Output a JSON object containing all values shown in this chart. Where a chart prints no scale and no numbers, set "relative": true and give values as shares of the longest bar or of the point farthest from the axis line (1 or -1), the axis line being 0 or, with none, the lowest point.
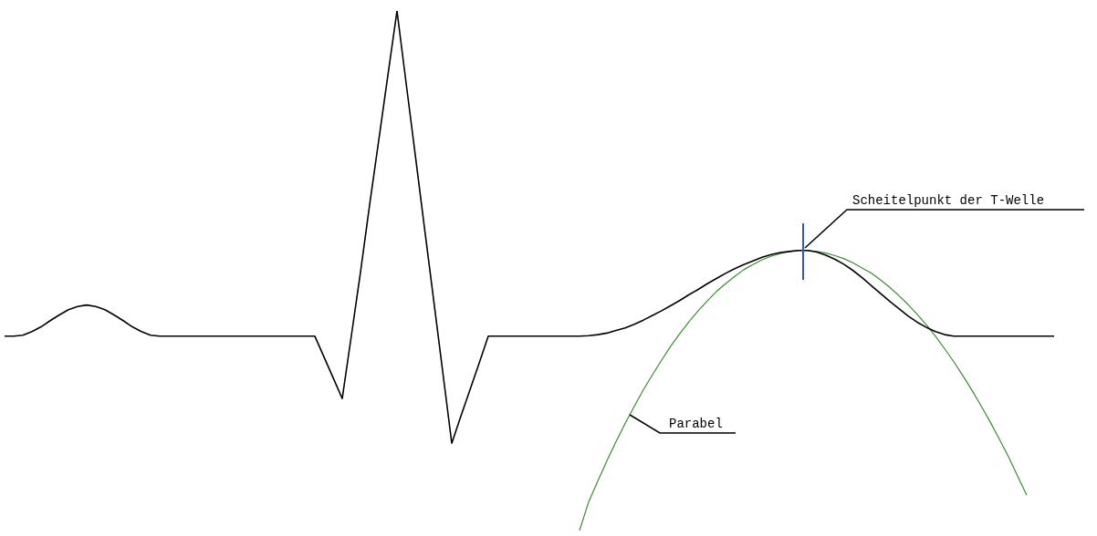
{
  "chart_data": {
    "type": "line",
    "relative": true,
    "marker": "none",
    "line_style": "solid",
    "categories": [
      null,
      null,
      null,
      null,
      null,
      null,
      null,
      null,
      null,
      null,
      null,
      null,
      null,
      null,
      null,
      null,
      null,
      null,
      null,
      null,
      null,
      null,
      null,
      null,
      null,
      null,
      null,
      null,
      null,
      null,
      null,
      null,
      null,
      null,
      null,
      null,
      null,
      null,
      null,
      null,
      null,
      null,
      null,
      null,
      null,
      null,
      null,
      null,
      null,
      null,
      null,
      null,
      null,
      null,
      null,
      null,
      null,
      null,
      null,
      null,
      null,
      null,
      null,
      null,
      null,
      null,
      null,
      null,
      null,
      null,
      null,
      null,
      null,
      null,
      null,
      null,
      null,
      null,
      null,
      null,
      null,
      null,
      null,
      null,
      null,
      null,
      null,
      null,
      null,
      null,
      null,
      null,
      null,
      null,
      null,
      null,
      null,
      null,
      null,
      null,
      null,
      null,
      null,
      null,
      null,
      null,
      null,
      null,
      null,
      null,
      null,
      null,
      null,
      null,
      null,
      null
    ],
    "series": [
      {
        "color": "#000000",
        "values": [
          0.374,
          0.374,
          0.376,
          0.383,
          0.392,
          0.404,
          0.415,
          0.425,
          0.431,
          0.434,
          0.431,
          0.425,
          0.415,
          0.404,
          0.392,
          0.383,
          0.376,
          0.374,
          0.374,
          0.374,
          0.374,
          0.374,
          0.374,
          0.374,
          0.374,
          0.374,
          0.374,
          0.374,
          0.374,
          0.374,
          0.374,
          0.374,
          0.374,
          0.374,
          0.374,
          0.334,
          0.294,
          0.254,
          0.375,
          0.497,
          0.627,
          0.751,
          0.876,
          1,
          0.861,
          0.723,
          0.584,
          0.446,
          0.307,
          0.168,
          0.22,
          0.271,
          0.322,
          0.374,
          0.374,
          0.374,
          0.374,
          0.374,
          0.374,
          0.374,
          0.374,
          0.374,
          0.374,
          0.374,
          0.375,
          0.377,
          0.38,
          0.385,
          0.39,
          0.397,
          0.405,
          0.414,
          0.423,
          0.433,
          0.443,
          0.454,
          0.464,
          0.475,
          0.485,
          0.495,
          0.504,
          0.512,
          0.519,
          0.526,
          0.531,
          0.535,
          0.537,
          0.539,
          0.539,
          0.536,
          0.53,
          0.522,
          0.512,
          0.5,
          0.486,
          0.471,
          0.456,
          0.441,
          0.427,
          0.413,
          0.401,
          0.391,
          0.383,
          0.377,
          0.374,
          0.374,
          0.374,
          0.374,
          0.374,
          0.374,
          0.374,
          0.374,
          0.374,
          0.374,
          0.374,
          0.374
        ]
      },
      {
        "color": "#3c8c32",
        "values": [
          null,
          null,
          null,
          null,
          null,
          null,
          null,
          null,
          null,
          null,
          null,
          null,
          null,
          null,
          null,
          null,
          null,
          null,
          null,
          null,
          null,
          null,
          null,
          null,
          null,
          null,
          null,
          null,
          null,
          null,
          null,
          null,
          null,
          null,
          null,
          null,
          null,
          null,
          null,
          null,
          null,
          null,
          null,
          null,
          null,
          null,
          null,
          null,
          null,
          null,
          null,
          null,
          null,
          null,
          null,
          null,
          null,
          null,
          null,
          null,
          null,
          null,
          null,
          0,
          0.055,
          0.095,
          0.134,
          0.171,
          0.206,
          0.239,
          0.271,
          0.3,
          0.328,
          0.355,
          0.379,
          0.402,
          0.423,
          0.442,
          0.46,
          0.475,
          0.489,
          0.502,
          0.512,
          0.521,
          0.528,
          0.533,
          0.537,
          0.539,
          0.539,
          0.537,
          0.534,
          0.529,
          0.523,
          0.515,
          0.505,
          0.495,
          0.482,
          0.468,
          0.452,
          0.435,
          0.416,
          0.396,
          0.374,
          0.35,
          0.325,
          0.298,
          0.27,
          0.24,
          0.209,
          0.176,
          0.142,
          0.105,
          0.068,
          null,
          null,
          null
        ]
      }
    ],
    "annotations": [
      "Scheitelpunkt der T-Welle",
      "Parabel"
    ]
  }
}
